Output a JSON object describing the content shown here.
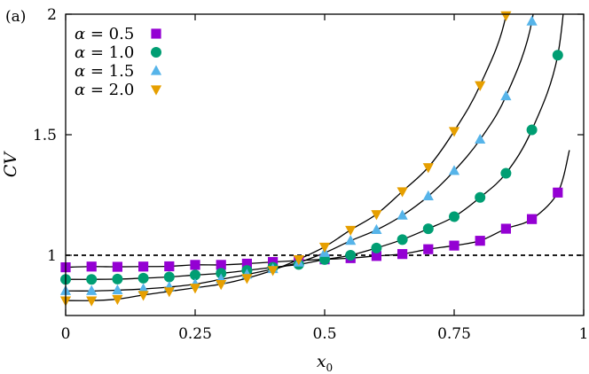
{
  "chart_data": {
    "type": "scatter",
    "panel_label": "(a)",
    "xlabel_var": "x",
    "xlabel_sub": "0",
    "ylabel": "CV",
    "xlim": [
      0,
      1
    ],
    "ylim": [
      0.75,
      2.0
    ],
    "xticks": [
      0,
      0.25,
      0.5,
      0.75,
      1
    ],
    "xtick_labels": [
      "0",
      "0.25",
      "0.5",
      "0.75",
      "1"
    ],
    "yticks": [
      1,
      1.5,
      2
    ],
    "ytick_labels": [
      "1",
      "1.5",
      "2"
    ],
    "reference_line": {
      "y": 1,
      "style": "dashed",
      "color": "#000000"
    },
    "legend_position": "top-left",
    "x": [
      0,
      0.05,
      0.1,
      0.15,
      0.2,
      0.25,
      0.3,
      0.35,
      0.4,
      0.45,
      0.5,
      0.55,
      0.6,
      0.65,
      0.7,
      0.75,
      0.8,
      0.85,
      0.9,
      0.95
    ],
    "series": [
      {
        "name": "α = 0.5",
        "legend_symbol": "α",
        "legend_value": "= 0.5",
        "marker": "square",
        "color": "#9400d3",
        "values": [
          0.95,
          0.953,
          0.952,
          0.953,
          0.954,
          0.96,
          0.96,
          0.965,
          0.972,
          0.978,
          0.983,
          0.988,
          0.997,
          1.005,
          1.025,
          1.04,
          1.06,
          1.11,
          1.15,
          1.26
        ]
      },
      {
        "name": "α = 1.0",
        "legend_symbol": "α",
        "legend_value": "= 1.0",
        "marker": "circle",
        "color": "#009e73",
        "values": [
          0.9,
          0.9,
          0.901,
          0.905,
          0.91,
          0.918,
          0.925,
          0.937,
          0.95,
          0.962,
          0.982,
          1.0,
          1.03,
          1.065,
          1.11,
          1.16,
          1.24,
          1.34,
          1.52,
          1.83
        ]
      },
      {
        "name": "α = 1.5",
        "legend_symbol": "α",
        "legend_value": "= 1.5",
        "marker": "triangle-up",
        "color": "#56b4e9",
        "values": [
          0.852,
          0.852,
          0.855,
          0.86,
          0.868,
          0.88,
          0.9,
          0.92,
          0.943,
          0.97,
          1.01,
          1.06,
          1.105,
          1.165,
          1.245,
          1.35,
          1.48,
          1.66,
          1.97,
          null
        ]
      },
      {
        "name": "α = 2.0",
        "legend_symbol": "α",
        "legend_value": "= 2.0",
        "marker": "triangle-down",
        "color": "#e69f00",
        "values": [
          0.812,
          0.812,
          0.818,
          0.835,
          0.85,
          0.865,
          0.88,
          0.905,
          0.938,
          0.983,
          1.035,
          1.105,
          1.17,
          1.265,
          1.365,
          1.515,
          1.705,
          1.995,
          null,
          null
        ]
      }
    ],
    "fit_curves": [
      {
        "series": "α = 0.5",
        "color": "#000000"
      },
      {
        "series": "α = 1.0",
        "color": "#000000"
      },
      {
        "series": "α = 1.5",
        "color": "#000000"
      },
      {
        "series": "α = 2.0",
        "color": "#000000"
      }
    ]
  }
}
